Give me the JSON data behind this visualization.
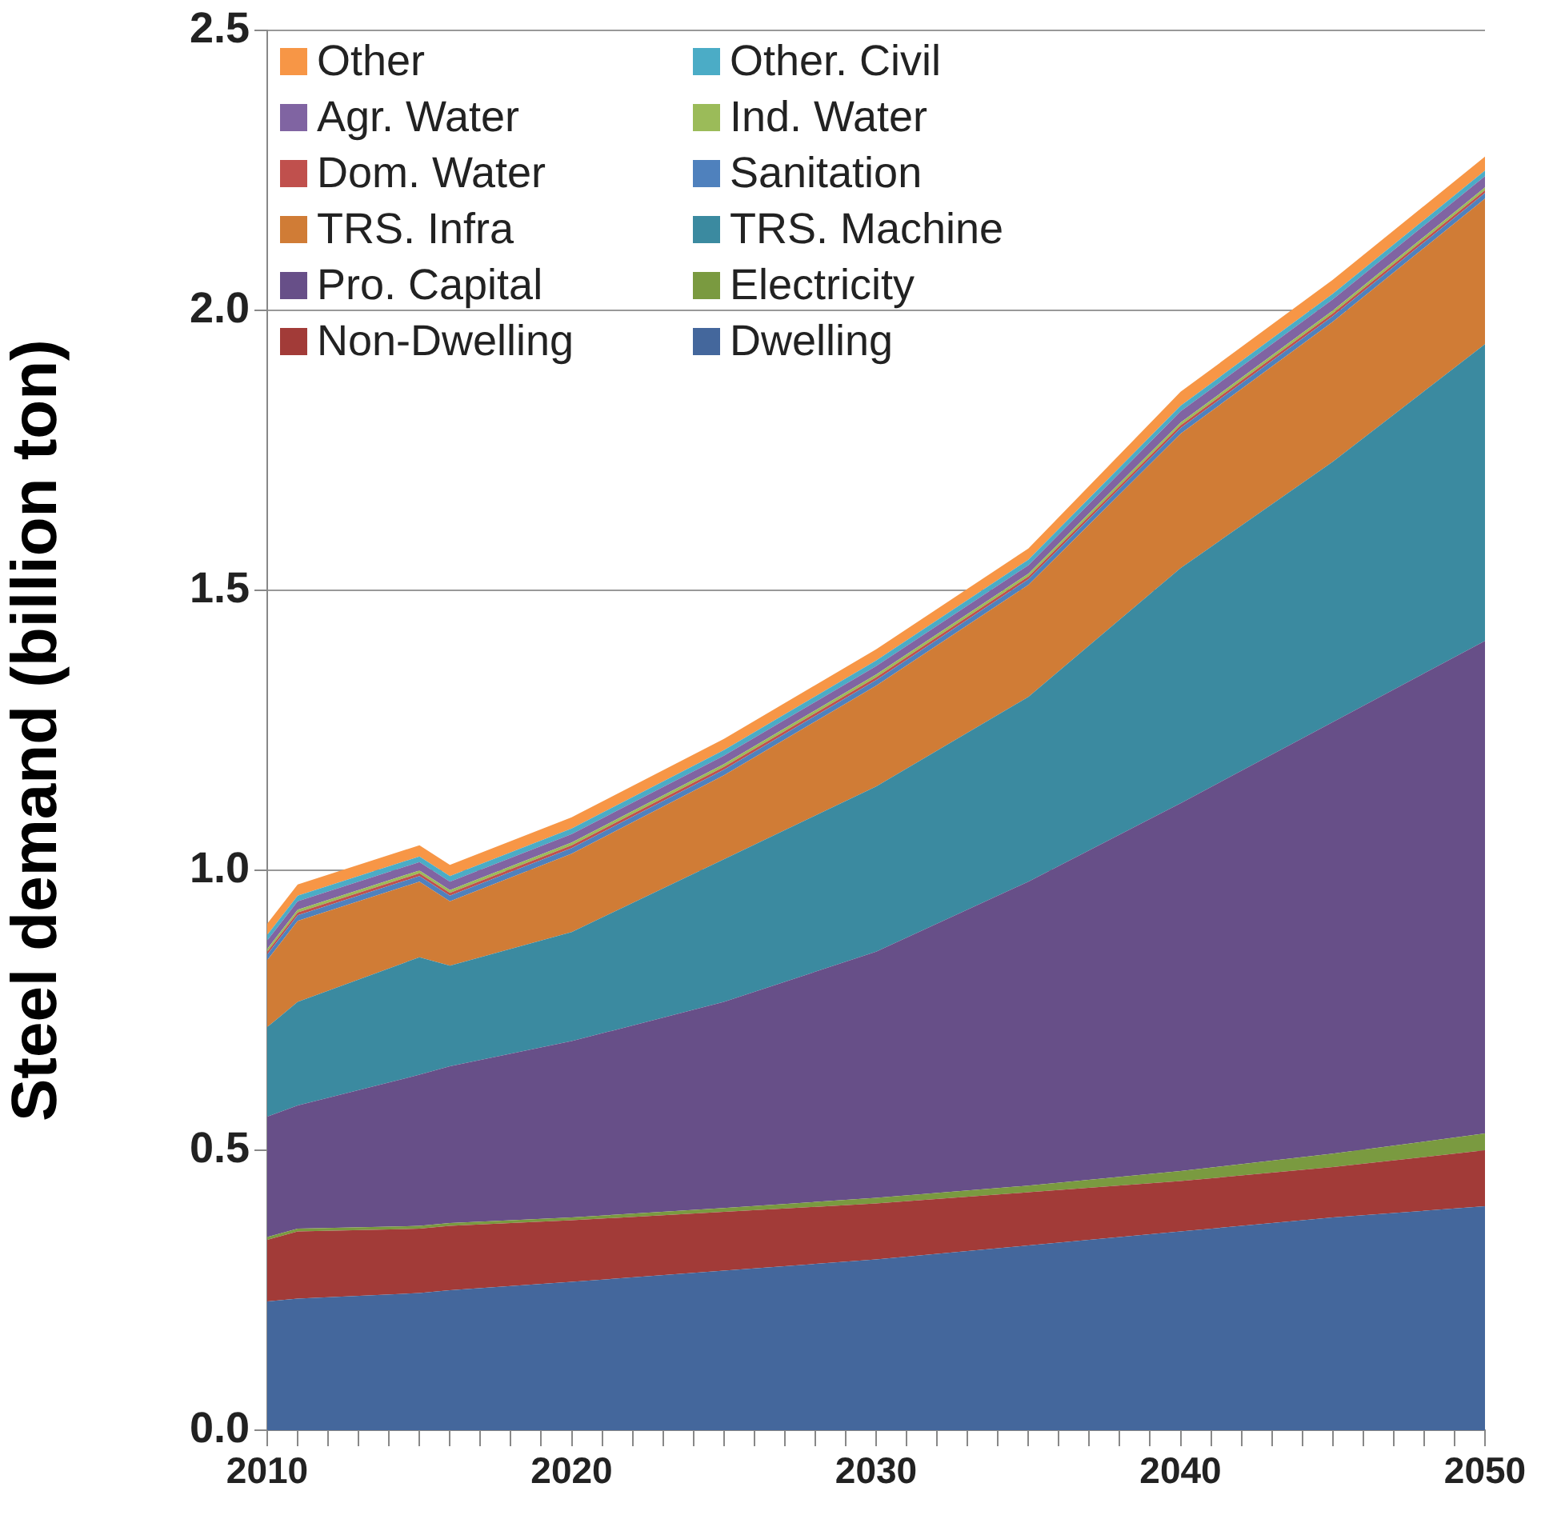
{
  "chart_data": {
    "type": "area",
    "stacked": true,
    "ylabel": "Steel demand (billion ton)",
    "xlim": [
      2010,
      2050
    ],
    "xticks": [
      2010,
      {
        "value": 2011,
        "label": null
      },
      {
        "value": 2012,
        "label": null
      },
      {
        "value": 2013,
        "label": null
      },
      {
        "value": 2014,
        "label": null
      },
      {
        "value": 2015,
        "label": null
      },
      {
        "value": 2016,
        "label": null
      },
      {
        "value": 2017,
        "label": null
      },
      {
        "value": 2018,
        "label": null
      },
      {
        "value": 2019,
        "label": null
      },
      2020,
      {
        "value": 2021,
        "label": null
      },
      {
        "value": 2022,
        "label": null
      },
      {
        "value": 2023,
        "label": null
      },
      {
        "value": 2024,
        "label": null
      },
      {
        "value": 2025,
        "label": null
      },
      {
        "value": 2026,
        "label": null
      },
      {
        "value": 2027,
        "label": null
      },
      {
        "value": 2028,
        "label": null
      },
      {
        "value": 2029,
        "label": null
      },
      2030,
      {
        "value": 2031,
        "label": null
      },
      {
        "value": 2032,
        "label": null
      },
      {
        "value": 2033,
        "label": null
      },
      {
        "value": 2034,
        "label": null
      },
      {
        "value": 2035,
        "label": null
      },
      {
        "value": 2036,
        "label": null
      },
      {
        "value": 2037,
        "label": null
      },
      {
        "value": 2038,
        "label": null
      },
      {
        "value": 2039,
        "label": null
      },
      2040,
      {
        "value": 2041,
        "label": null
      },
      {
        "value": 2042,
        "label": null
      },
      {
        "value": 2043,
        "label": null
      },
      {
        "value": 2044,
        "label": null
      },
      {
        "value": 2045,
        "label": null
      },
      {
        "value": 2046,
        "label": null
      },
      {
        "value": 2047,
        "label": null
      },
      {
        "value": 2048,
        "label": null
      },
      {
        "value": 2049,
        "label": null
      },
      2050
    ],
    "ylim": [
      0,
      2.5
    ],
    "yticks": [
      {
        "value": 0,
        "label": "0.0"
      },
      {
        "value": 0.5,
        "label": "0.5"
      },
      {
        "value": 1,
        "label": "1.0"
      },
      {
        "value": 1.5,
        "label": "1.5"
      },
      {
        "value": 2,
        "label": "2.0"
      },
      {
        "value": 2.5,
        "label": "2.5"
      }
    ],
    "grid": "y",
    "legend": "top left",
    "x": [
      2010,
      2011,
      2015,
      2016,
      2020,
      2025,
      2030,
      2035,
      2040,
      2045,
      2050
    ],
    "series": [
      {
        "name": "Dwelling",
        "color": "#44679c",
        "values": [
          0.23,
          0.235,
          0.245,
          0.25,
          0.265,
          0.285,
          0.305,
          0.33,
          0.355,
          0.38,
          0.4
        ]
      },
      {
        "name": "Non-Dwelling",
        "color": "#a23b38",
        "values": [
          0.11,
          0.12,
          0.115,
          0.115,
          0.11,
          0.105,
          0.1,
          0.095,
          0.09,
          0.09,
          0.1
        ]
      },
      {
        "name": "Electricity",
        "color": "#7a9a40",
        "values": [
          0.005,
          0.005,
          0.005,
          0.005,
          0.005,
          0.007,
          0.01,
          0.012,
          0.018,
          0.024,
          0.03
        ]
      },
      {
        "name": "Pro. Capital",
        "color": "#674f88",
        "values": [
          0.215,
          0.22,
          0.27,
          0.28,
          0.315,
          0.368,
          0.44,
          0.543,
          0.657,
          0.771,
          0.88
        ]
      },
      {
        "name": "TRS. Machine",
        "color": "#3b8aa0",
        "values": [
          0.16,
          0.185,
          0.21,
          0.18,
          0.195,
          0.255,
          0.295,
          0.33,
          0.42,
          0.465,
          0.53
        ]
      },
      {
        "name": "TRS. Infra",
        "color": "#d07c36",
        "values": [
          0.12,
          0.145,
          0.135,
          0.115,
          0.14,
          0.15,
          0.18,
          0.2,
          0.24,
          0.25,
          0.26
        ]
      },
      {
        "name": "Sanitation",
        "color": "#4f81bd",
        "values": [
          0.01,
          0.01,
          0.01,
          0.01,
          0.01,
          0.01,
          0.01,
          0.01,
          0.01,
          0.01,
          0.01
        ]
      },
      {
        "name": "Dom. Water",
        "color": "#c0504d",
        "values": [
          0.005,
          0.005,
          0.005,
          0.005,
          0.005,
          0.005,
          0.005,
          0.005,
          0.005,
          0.005,
          0.005
        ]
      },
      {
        "name": "Ind. Water",
        "color": "#9bbb59",
        "values": [
          0.005,
          0.005,
          0.005,
          0.005,
          0.005,
          0.005,
          0.005,
          0.005,
          0.005,
          0.005,
          0.005
        ]
      },
      {
        "name": "Agr. Water",
        "color": "#8064a2",
        "values": [
          0.015,
          0.015,
          0.015,
          0.015,
          0.015,
          0.015,
          0.015,
          0.015,
          0.02,
          0.02,
          0.02
        ]
      },
      {
        "name": "Other. Civil",
        "color": "#4bacc6",
        "values": [
          0.01,
          0.01,
          0.01,
          0.01,
          0.01,
          0.01,
          0.01,
          0.01,
          0.01,
          0.01,
          0.01
        ]
      },
      {
        "name": "Other",
        "color": "#f79646",
        "values": [
          0.02,
          0.02,
          0.02,
          0.02,
          0.02,
          0.02,
          0.02,
          0.02,
          0.025,
          0.025,
          0.025
        ]
      }
    ]
  }
}
